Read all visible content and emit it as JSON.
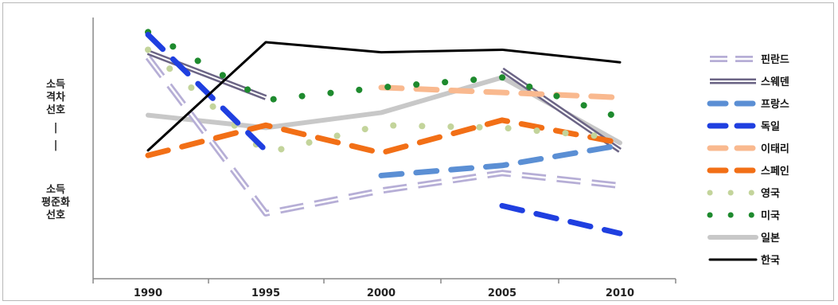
{
  "chart_data": {
    "type": "line",
    "x": [
      "1990",
      "1995",
      "2000",
      "2005",
      "2010"
    ],
    "ylabel_top": [
      "소득",
      "격차",
      "선호"
    ],
    "ylabel_sep": [
      "|",
      "|"
    ],
    "ylabel_bottom": [
      "소득",
      "평준화",
      "선호"
    ],
    "ylim": [
      0,
      10
    ],
    "y_direction": "higher values toward 소득 격차 선호 (top), lower toward 소득 평준화 선호 (bottom)",
    "grid": false,
    "legend_position": "right",
    "series": [
      {
        "name": "핀란드",
        "values": [
          8.8,
          2.6,
          3.5,
          4.2,
          3.7
        ],
        "color": "#b6aed6",
        "style": "double-dash"
      },
      {
        "name": "스웨덴",
        "values": [
          9.0,
          7.2,
          null,
          8.3,
          5.1
        ],
        "color": "#6b6485",
        "style": "double-solid"
      },
      {
        "name": "프랑스",
        "values": [
          null,
          null,
          4.1,
          4.5,
          5.3
        ],
        "color": "#5b8fd4",
        "style": "dash"
      },
      {
        "name": "독일",
        "values": [
          9.7,
          5.1,
          null,
          2.9,
          1.8
        ],
        "color": "#1f3fe0",
        "style": "dash"
      },
      {
        "name": "이태리",
        "values": [
          null,
          null,
          7.6,
          7.4,
          7.2
        ],
        "color": "#f9b98f",
        "style": "dash"
      },
      {
        "name": "스페인",
        "values": [
          4.9,
          6.1,
          5.0,
          6.3,
          5.4
        ],
        "color": "#f26f16",
        "style": "dash"
      },
      {
        "name": "영국",
        "values": [
          9.1,
          5.0,
          6.1,
          6.0,
          5.6
        ],
        "color": "#c3d49b",
        "style": "dot"
      },
      {
        "name": "미국",
        "values": [
          9.8,
          7.1,
          7.6,
          8.0,
          6.4
        ],
        "color": "#1e8a2e",
        "style": "dot"
      },
      {
        "name": "일본",
        "values": [
          6.5,
          6.0,
          6.6,
          8.0,
          5.4
        ],
        "color": "#c8c8c8",
        "style": "solid"
      },
      {
        "name": "한국",
        "values": [
          5.1,
          9.4,
          9.0,
          9.1,
          8.6
        ],
        "color": "#000000",
        "style": "solid"
      }
    ]
  }
}
